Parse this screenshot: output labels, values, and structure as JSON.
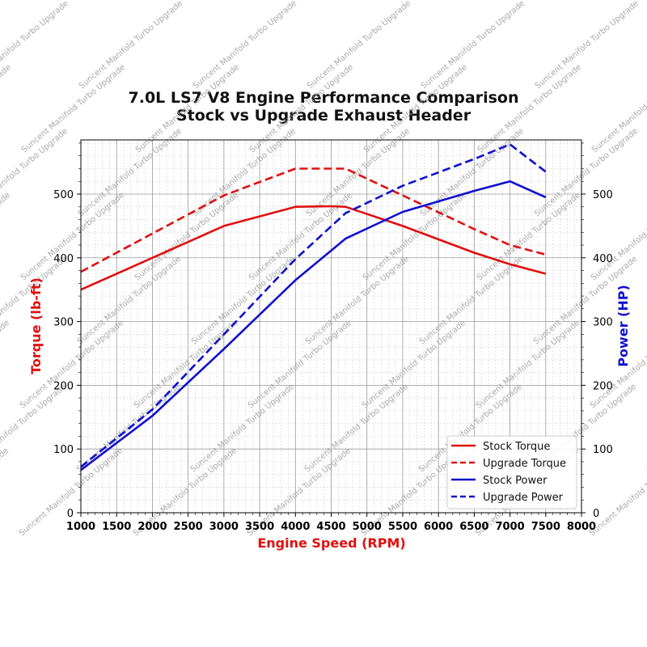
{
  "chart_data": {
    "type": "line",
    "title": "7.0L LS7 V8 Engine Performance Comparison",
    "subtitle": "Stock vs Upgrade Exhaust Header",
    "xlabel": "Engine Speed (RPM)",
    "ylabel_left": "Torque (lb-ft)",
    "ylabel_right": "Power (HP)",
    "xlim": [
      1000,
      8000
    ],
    "ylim_left": [
      0,
      585
    ],
    "ylim_right": [
      0,
      585
    ],
    "x_ticks": [
      1000,
      1500,
      2000,
      2500,
      3000,
      3500,
      4000,
      4500,
      5000,
      5500,
      6000,
      6500,
      7000,
      7500,
      8000
    ],
    "y_ticks_left": [
      0,
      100,
      200,
      300,
      400,
      500
    ],
    "y_ticks_right": [
      0,
      100,
      200,
      300,
      400,
      500
    ],
    "grid": true,
    "legend_position": "lower-right",
    "watermark": "Suncent Manifold Turbo Upgrade",
    "series": [
      {
        "name": "Stock Torque",
        "axis": "left",
        "color": "#e01010",
        "dash": "solid",
        "x": [
          1000,
          2000,
          3000,
          4000,
          4500,
          4700,
          5500,
          6500,
          7000,
          7500
        ],
        "y": [
          350,
          400,
          450,
          480,
          481,
          480,
          450,
          408,
          390,
          375
        ]
      },
      {
        "name": "Upgrade Torque",
        "axis": "left",
        "color": "#e01010",
        "dash": "dashed",
        "x": [
          1000,
          2000,
          3000,
          4000,
          4500,
          4700,
          5500,
          6500,
          7000,
          7500
        ],
        "y": [
          378,
          438,
          498,
          540,
          540,
          540,
          498,
          445,
          420,
          405
        ]
      },
      {
        "name": "Stock Power",
        "axis": "right",
        "color": "#1010d0",
        "dash": "solid",
        "x": [
          1000,
          2000,
          3000,
          4000,
          4700,
          5500,
          6500,
          7000,
          7500
        ],
        "y": [
          67,
          152,
          257,
          365,
          430,
          472,
          505,
          520,
          495
        ]
      },
      {
        "name": "Upgrade Power",
        "axis": "right",
        "color": "#1010d0",
        "dash": "dashed",
        "x": [
          1000,
          2000,
          3000,
          4000,
          4700,
          5500,
          6500,
          7000,
          7500
        ],
        "y": [
          72,
          162,
          280,
          398,
          470,
          513,
          555,
          578,
          535
        ]
      }
    ]
  }
}
